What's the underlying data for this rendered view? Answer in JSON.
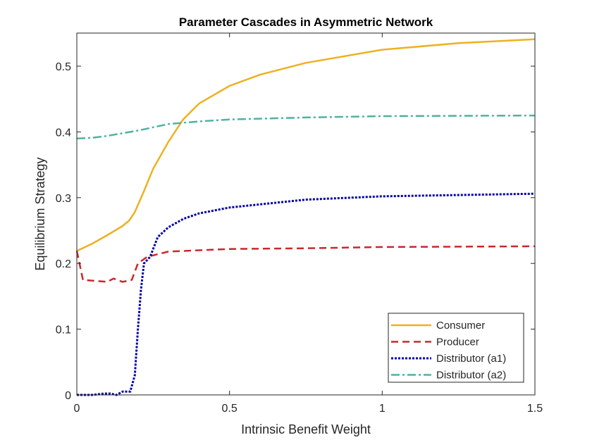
{
  "chart_data": {
    "type": "line",
    "title": "Parameter Cascades in Asymmetric Network",
    "xlabel": "Intrinsic Benefit Weight",
    "ylabel": "Equilibrium Strategy",
    "xlim": [
      0,
      1.5
    ],
    "ylim": [
      0,
      0.55
    ],
    "xticks": [
      0,
      0.5,
      1,
      1.5
    ],
    "xtick_labels": [
      "0",
      "0.5",
      "1",
      "1.5"
    ],
    "yticks": [
      0,
      0.1,
      0.2,
      0.3,
      0.4,
      0.5
    ],
    "ytick_labels": [
      "0",
      "0.1",
      "0.2",
      "0.3",
      "0.4",
      "0.5"
    ],
    "grid": false,
    "legend_position": "bottom-right",
    "series": [
      {
        "name": "Consumer",
        "color": "#EDB120",
        "dash": "solid",
        "x": [
          0,
          0.05,
          0.1,
          0.15,
          0.171,
          0.19,
          0.22,
          0.25,
          0.3,
          0.348,
          0.4,
          0.5,
          0.6,
          0.75,
          1.0,
          1.25,
          1.5
        ],
        "y": [
          0.219,
          0.23,
          0.243,
          0.257,
          0.265,
          0.278,
          0.31,
          0.344,
          0.385,
          0.419,
          0.443,
          0.47,
          0.487,
          0.505,
          0.525,
          0.535,
          0.541
        ]
      },
      {
        "name": "Producer",
        "color": "#C8282D",
        "dash": "dashed",
        "x": [
          0,
          0.02,
          0.1,
          0.12,
          0.15,
          0.18,
          0.2,
          0.23,
          0.3,
          0.5,
          0.75,
          1.0,
          1.5
        ],
        "y": [
          0.219,
          0.175,
          0.172,
          0.177,
          0.172,
          0.175,
          0.2,
          0.21,
          0.218,
          0.222,
          0.223,
          0.225,
          0.226
        ],
        "dasharray": "10 6"
      },
      {
        "name": "Distributor (a1)",
        "color": "#0000A8",
        "dash": "dotted",
        "x": [
          0,
          0.05,
          0.09,
          0.11,
          0.13,
          0.15,
          0.175,
          0.19,
          0.2,
          0.21,
          0.22,
          0.24,
          0.265,
          0.3,
          0.35,
          0.4,
          0.5,
          0.75,
          1.0,
          1.5
        ],
        "y": [
          0,
          0,
          0.002,
          0.002,
          0,
          0.005,
          0.005,
          0.03,
          0.1,
          0.16,
          0.2,
          0.21,
          0.24,
          0.255,
          0.268,
          0.276,
          0.285,
          0.297,
          0.302,
          0.306
        ]
      },
      {
        "name": "Distributor (a2)",
        "color": "#4DB3A2",
        "dash": "dashdot",
        "x": [
          0,
          0.05,
          0.1,
          0.2,
          0.3,
          0.4,
          0.5,
          0.75,
          1.0,
          1.5
        ],
        "y": [
          0.39,
          0.391,
          0.394,
          0.402,
          0.412,
          0.416,
          0.419,
          0.422,
          0.424,
          0.425
        ]
      }
    ]
  }
}
